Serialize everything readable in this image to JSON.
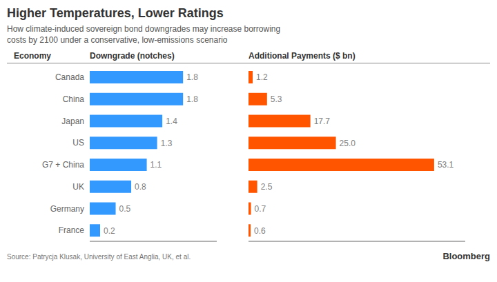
{
  "chart_data": [
    {
      "type": "bar",
      "orientation": "horizontal",
      "title": "Higher Temperatures, Lower Ratings",
      "subtitle": "How climate-induced sovereign bond downgrades may increase borrowing\ncosts by 2100 under a conservative, low-emissions scenario",
      "ylabel": "Economy",
      "xlabel": "Downgrade (notches)",
      "categories": [
        "Canada",
        "China",
        "Japan",
        "US",
        "G7 + China",
        "UK",
        "Germany",
        "France"
      ],
      "values": [
        1.8,
        1.8,
        1.4,
        1.3,
        1.1,
        0.8,
        0.5,
        0.2
      ],
      "color": "#3399ff",
      "xlim": [
        0,
        2.45
      ],
      "grid": false,
      "data_labels": true,
      "tick_labels": "y",
      "annotations": [
        "Source: Patrycja Klusak, University of East Anglia, UK, et al.",
        "Bloomberg"
      ]
    },
    {
      "type": "bar",
      "orientation": "horizontal",
      "xlabel": "Additional Payments ($ bn)",
      "categories": [
        "Canada",
        "China",
        "Japan",
        "US",
        "G7 + China",
        "UK",
        "Germany",
        "France"
      ],
      "values": [
        1.2,
        5.3,
        17.7,
        25.0,
        53.1,
        2.5,
        0.7,
        0.6
      ],
      "value_labels": [
        "1.2",
        "5.3",
        "17.7",
        "25.0",
        "53.1",
        "2.5",
        "0.7",
        "0.6"
      ],
      "color": "#ff5500",
      "xlim": [
        0,
        62.0
      ],
      "grid": false,
      "data_labels": true,
      "tick_labels": false
    }
  ]
}
